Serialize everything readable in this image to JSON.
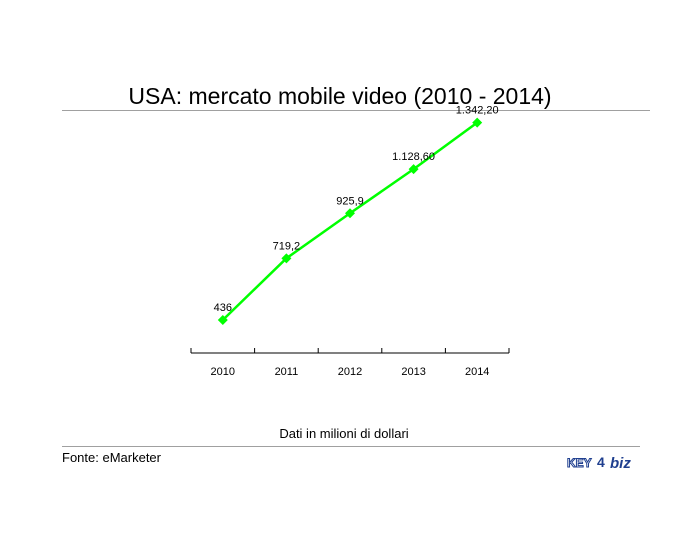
{
  "page": {
    "title": "USA: mercato mobile video (2010 - 2014)",
    "footnote": "Dati in milioni di dollari",
    "source": "Fonte: eMarketer",
    "logo": {
      "part1": "KEY",
      "part2": "4",
      "part3": "biz",
      "colors": {
        "key": "#1f3f8f",
        "four": "#1f3f8f",
        "biz": "#1f3f8f"
      }
    }
  },
  "chart_data": {
    "type": "line",
    "title": "USA: mercato mobile video (2010 - 2014)",
    "xlabel": "",
    "ylabel": "",
    "categories": [
      "2010",
      "2011",
      "2012",
      "2013",
      "2014"
    ],
    "series": [
      {
        "values": [
          436,
          719.2,
          925.9,
          1128.6,
          1342.2
        ],
        "labels": [
          "436",
          "719,2",
          "925,9",
          "1.128,60",
          "1.342,20"
        ],
        "color": "#00ff00",
        "marker": "diamond"
      }
    ],
    "ylim": [
      0,
      1400
    ],
    "grid": false,
    "legend": "none"
  }
}
